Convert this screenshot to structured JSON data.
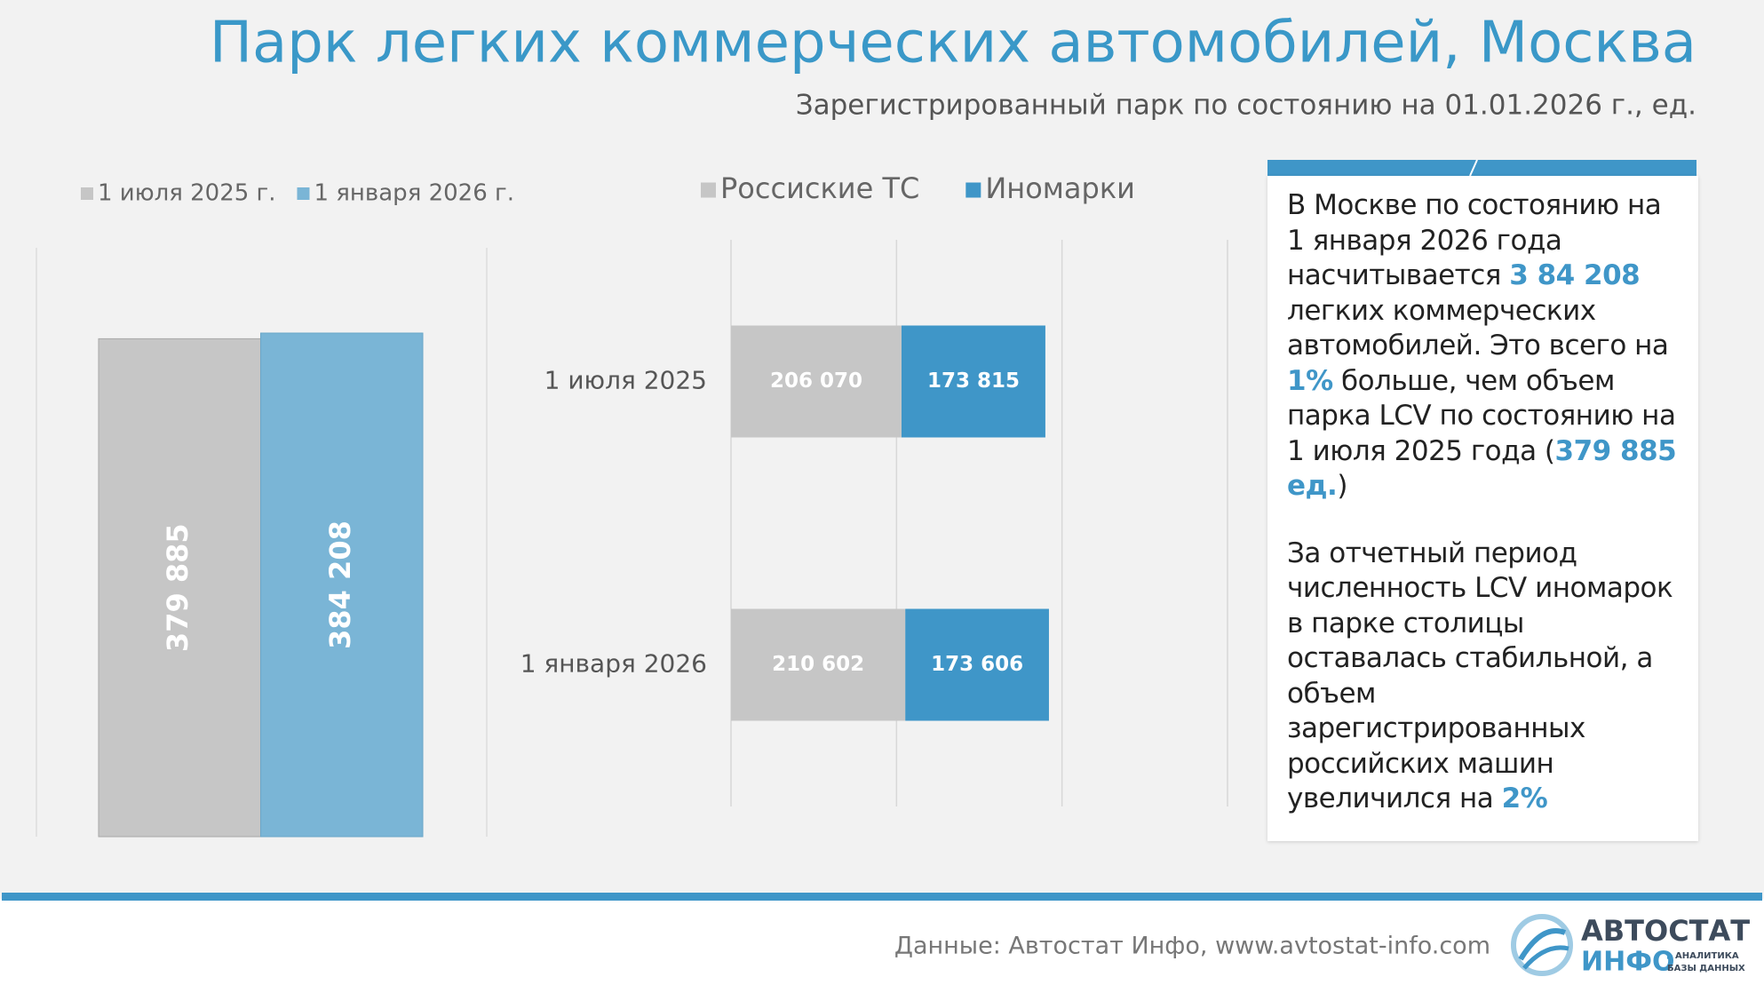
{
  "header": {
    "title": "Парк легких коммерческих автомобилей, Москва",
    "subtitle": "Зарегистрированный парк по состоянию на 01.01.2026 г., ед."
  },
  "chart_data": [
    {
      "type": "bar",
      "orientation": "vertical",
      "categories": [
        null
      ],
      "series": [
        {
          "name": "1 июля 2025 г.",
          "color": "#c6c6c6",
          "values": [
            379885
          ],
          "value_labels": [
            "379 885"
          ]
        },
        {
          "name": "1 января 2026 г.",
          "color": "#7ab5d6",
          "values": [
            384208
          ],
          "value_labels": [
            "384 208"
          ]
        }
      ]
    },
    {
      "type": "bar",
      "orientation": "horizontal",
      "stacked": true,
      "categories": [
        "1 июля 2025",
        "1 января 2026"
      ],
      "series": [
        {
          "name": "Россиские ТС",
          "color": "#c6c6c6",
          "values": [
            206070,
            210602
          ],
          "value_labels": [
            "206 070",
            "210 602"
          ]
        },
        {
          "name": "Иномарки",
          "color": "#3f96c8",
          "values": [
            173815,
            173606
          ],
          "value_labels": [
            "173 815",
            "173 606"
          ]
        }
      ],
      "xlim": [
        0,
        600000
      ],
      "xticks": [
        0,
        200000,
        400000,
        600000
      ],
      "grid": true
    }
  ],
  "note": {
    "paragraphs": [
      [
        {
          "text": "В Москве по состоянию на 1 января 2026 года насчитывается "
        },
        {
          "text": "3 84 208",
          "highlight": true
        },
        {
          "text": " легких коммерческих автомобилей. Это всего на "
        },
        {
          "text": "1%",
          "highlight": true
        },
        {
          "text": " больше, чем объем парка LCV по состоянию на 1 июля 2025 года ("
        },
        {
          "text": "379 885 ед.",
          "highlight": true
        },
        {
          "text": ")"
        }
      ],
      [
        {
          "text": "За отчетный период численность LCV иномарок в парке столицы оставалась стабильной, а объем зарегистрированных российских машин увеличился на "
        },
        {
          "text": "2%",
          "highlight": true
        }
      ]
    ]
  },
  "footer": {
    "source": "Данные: Автостат Инфо, www.avtostat-info.com",
    "logo": {
      "name": "АВТОСТАТ",
      "sub": "ИНФО",
      "tagline": [
        "АНАЛИТИКА",
        "БАЗЫ ДАННЫХ"
      ]
    }
  }
}
